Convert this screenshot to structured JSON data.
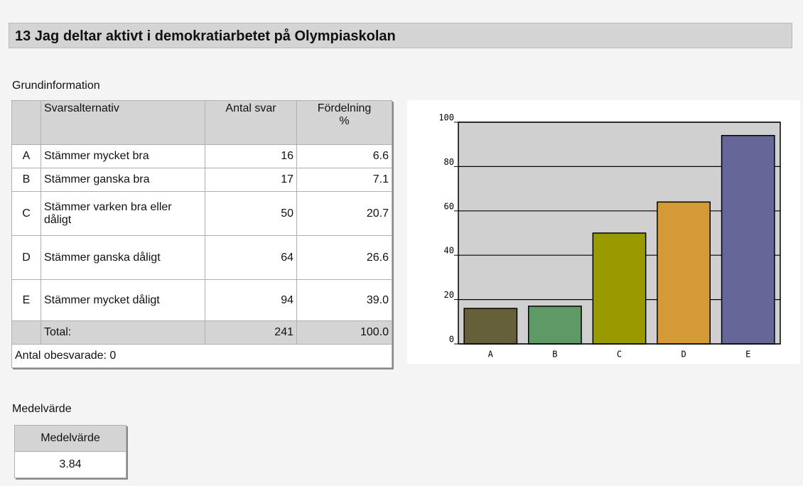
{
  "header": {
    "title": "13 Jag deltar aktivt i demokratiarbetet på Olympiaskolan"
  },
  "basic_info": {
    "heading": "Grundinformation",
    "table": {
      "columns": [
        "Svarsalternativ",
        "Antal svar",
        "Fördelning %"
      ],
      "rows": [
        {
          "letter": "A",
          "label": "Stämmer mycket bra",
          "count": "16",
          "percent": "6.6"
        },
        {
          "letter": "B",
          "label": "Stämmer ganska bra",
          "count": "17",
          "percent": "7.1"
        },
        {
          "letter": "C",
          "label": "Stämmer varken bra eller dåligt",
          "count": "50",
          "percent": "20.7"
        },
        {
          "letter": "D",
          "label": "Stämmer ganska dåligt",
          "count": "64",
          "percent": "26.6"
        },
        {
          "letter": "E",
          "label": "Stämmer mycket dåligt",
          "count": "94",
          "percent": "39.0"
        }
      ],
      "total": {
        "label": "Total:",
        "count": "241",
        "percent": "100.0"
      },
      "unanswered": "Antal obesvarade: 0"
    }
  },
  "chart_data": {
    "type": "bar",
    "categories": [
      "A",
      "B",
      "C",
      "D",
      "E"
    ],
    "values": [
      16,
      17,
      50,
      64,
      94
    ],
    "colors": [
      "#66603a",
      "#5f9a66",
      "#999900",
      "#d49a38",
      "#666699"
    ],
    "ylim": [
      0,
      100
    ],
    "yticks": [
      0,
      20,
      40,
      60,
      80,
      100
    ],
    "grid": true
  },
  "mean": {
    "heading": "Medelvärde",
    "column": "Medelvärde",
    "value": "3.84"
  }
}
